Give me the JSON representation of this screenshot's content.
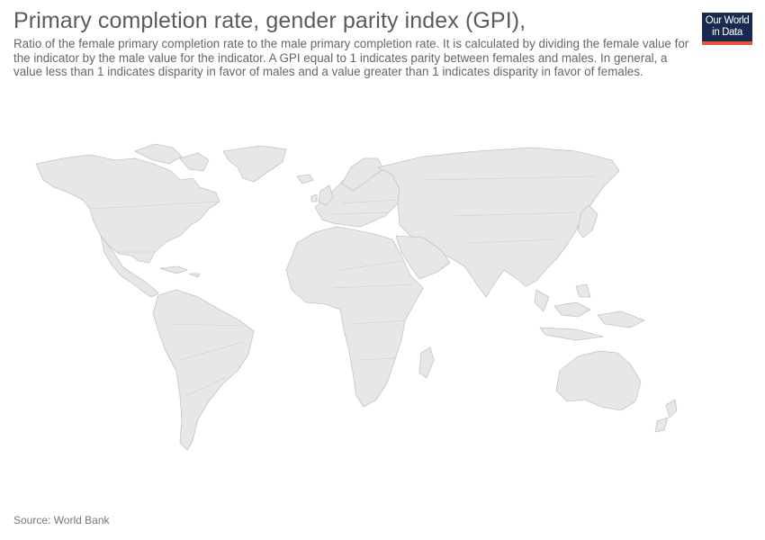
{
  "header": {
    "title": "Primary completion rate, gender parity index (GPI),",
    "subtitle": "Ratio of the female primary completion rate to the male primary completion rate. It is calculated by dividing the female value for the indicator by the male value for the indicator. A GPI equal to 1 indicates parity between females and males. In general, a value less than 1 indicates disparity in favor of males and a value greater than 1 indicates disparity in favor of females."
  },
  "logo": {
    "line1": "Our World",
    "line2": "in Data"
  },
  "footer": {
    "source": "Source: World Bank"
  },
  "colors": {
    "land": "#e7e7e7",
    "border": "#c4c4c4",
    "logo_bg": "#1a2a4f",
    "logo_accent": "#e5533b"
  }
}
